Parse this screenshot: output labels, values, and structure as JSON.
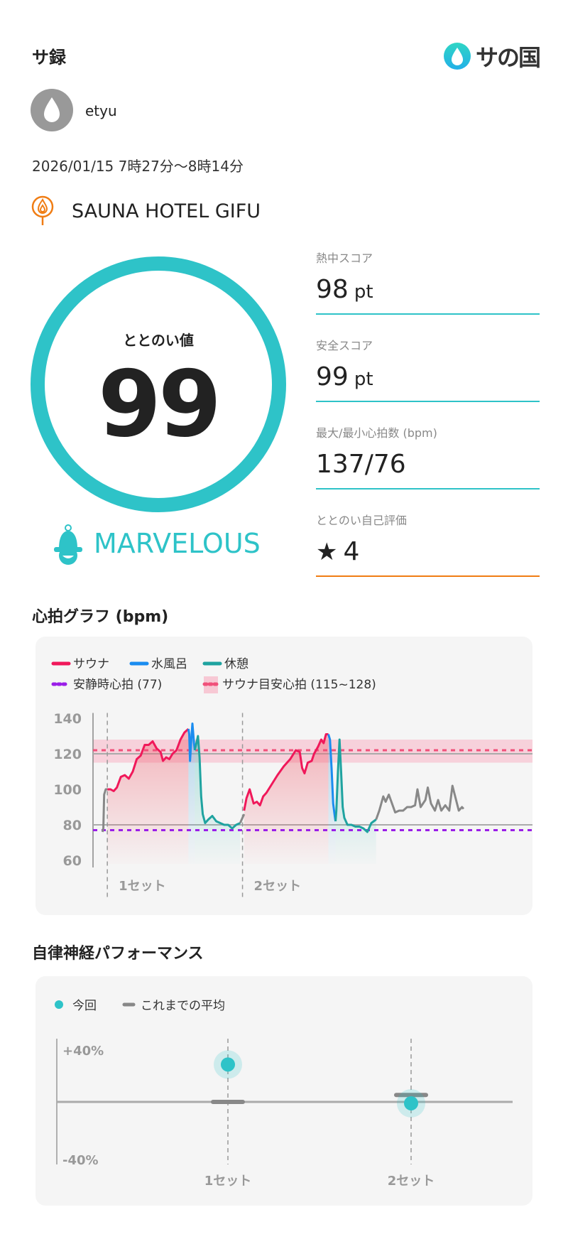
{
  "header": {
    "title": "サ録",
    "logo_text": "サの国"
  },
  "user": {
    "name": "etyu"
  },
  "session": {
    "datetime": "2026/01/15 7時27分〜8時14分"
  },
  "venue": {
    "name": "SAUNA HOTEL GIFU"
  },
  "totonoi": {
    "label": "ととのい値",
    "value": "99",
    "rank": "MARVELOUS",
    "ring_fraction": 1.0
  },
  "stats": [
    {
      "label": "熱中スコア",
      "value": "98",
      "unit": "pt"
    },
    {
      "label": "安全スコア",
      "value": "99",
      "unit": "pt"
    },
    {
      "label": "最大/最小心拍数 (bpm)",
      "value": "137/76",
      "unit": ""
    },
    {
      "label": "ととのい自己評価",
      "value": "4",
      "unit": "",
      "icon": "star-icon"
    }
  ],
  "colors": {
    "accent": "#2ec3c8",
    "sauna": "#f0185a",
    "water": "#1a8cf0",
    "rest": "#1fa3a0",
    "other": "#888888",
    "resting": "#9a1ee8",
    "target": "#f0507a",
    "orange": "#f07d14"
  },
  "heart_section": {
    "title": "心拍グラフ (bpm)"
  },
  "autonomic_section": {
    "title": "自律神経パフォーマンス"
  },
  "chart_data": [
    {
      "type": "line",
      "ylim": [
        60,
        140
      ],
      "yticks": [
        "140",
        "120",
        "100",
        "80",
        "60"
      ],
      "ytick_values": [
        140,
        120,
        100,
        80,
        60
      ],
      "grid_lines": [
        120,
        80
      ],
      "legend": {
        "sauna": "サウナ",
        "water": "水風呂",
        "rest": "休憩",
        "resting_hr": "安静時心拍 (77)",
        "target": "サウナ目安心拍 (115~128)"
      },
      "resting_hr": 77,
      "target_band": [
        115,
        128
      ],
      "target_line": 122,
      "set_labels": [
        "1セット",
        "2セット"
      ],
      "set_starts": [
        18,
        188
      ],
      "series": [
        {
          "name": "サウナ",
          "kind": "sauna",
          "points": [
            [
              18,
              100
            ],
            [
              22,
              100
            ],
            [
              26,
              99
            ],
            [
              30,
              101
            ],
            [
              35,
              107
            ],
            [
              40,
              108
            ],
            [
              45,
              106
            ],
            [
              50,
              110
            ],
            [
              55,
              117
            ],
            [
              60,
              119
            ],
            [
              65,
              125
            ],
            [
              70,
              125
            ],
            [
              75,
              127
            ],
            [
              80,
              123
            ],
            [
              85,
              121
            ],
            [
              88,
              116
            ],
            [
              92,
              118
            ],
            [
              96,
              117
            ],
            [
              100,
              120
            ],
            [
              105,
              122
            ],
            [
              110,
              128
            ],
            [
              115,
              132
            ],
            [
              120,
              134
            ]
          ]
        },
        {
          "name": "水風呂",
          "kind": "water",
          "points": [
            [
              120,
              134
            ],
            [
              121,
              131
            ],
            [
              122,
              116
            ],
            [
              124,
              131
            ],
            [
              125,
              137
            ],
            [
              127,
              126
            ],
            [
              128,
              122
            ]
          ]
        },
        {
          "name": "休憩",
          "kind": "rest",
          "points": [
            [
              128,
              122
            ],
            [
              130,
              126
            ],
            [
              132,
              130
            ],
            [
              134,
              118
            ],
            [
              136,
              96
            ],
            [
              138,
              86
            ],
            [
              141,
              81
            ],
            [
              145,
              83
            ],
            [
              150,
              85
            ],
            [
              155,
              82
            ],
            [
              160,
              81
            ],
            [
              165,
              80
            ],
            [
              170,
              80
            ],
            [
              175,
              78
            ],
            [
              180,
              80
            ],
            [
              185,
              81
            ]
          ]
        },
        {
          "name": "",
          "kind": "other",
          "points": [
            [
              12,
              76
            ],
            [
              13,
              78
            ],
            [
              14,
              97
            ],
            [
              16,
              100
            ],
            [
              18,
              100
            ]
          ]
        },
        {
          "name": "",
          "kind": "other",
          "points": [
            [
              185,
              81
            ],
            [
              188,
              84
            ],
            [
              190,
              86
            ]
          ]
        },
        {
          "name": "サウナ",
          "kind": "sauna",
          "points": [
            [
              190,
              88
            ],
            [
              193,
              95
            ],
            [
              197,
              100
            ],
            [
              202,
              92
            ],
            [
              206,
              93
            ],
            [
              210,
              91
            ],
            [
              214,
              96
            ],
            [
              218,
              98
            ],
            [
              225,
              103
            ],
            [
              232,
              108
            ],
            [
              240,
              113
            ],
            [
              248,
              117
            ],
            [
              255,
              122
            ],
            [
              260,
              121
            ],
            [
              263,
              112
            ],
            [
              266,
              109
            ],
            [
              270,
              115
            ],
            [
              275,
              116
            ],
            [
              278,
              120
            ],
            [
              283,
              124
            ],
            [
              287,
              128
            ],
            [
              290,
              126
            ],
            [
              293,
              131
            ],
            [
              296,
              131
            ]
          ]
        },
        {
          "name": "水風呂",
          "kind": "water",
          "points": [
            [
              296,
              131
            ],
            [
              298,
              128
            ],
            [
              300,
              112
            ],
            [
              302,
              92
            ],
            [
              304,
              85
            ],
            [
              305,
              82
            ]
          ]
        },
        {
          "name": "休憩",
          "kind": "rest",
          "points": [
            [
              305,
              82
            ],
            [
              306,
              88
            ],
            [
              308,
              110
            ],
            [
              310,
              128
            ],
            [
              312,
              110
            ],
            [
              314,
              90
            ],
            [
              316,
              84
            ],
            [
              320,
              80
            ],
            [
              325,
              80
            ],
            [
              330,
              79
            ],
            [
              335,
              79
            ],
            [
              340,
              78
            ],
            [
              345,
              76
            ],
            [
              350,
              81
            ],
            [
              356,
              83
            ]
          ]
        },
        {
          "name": "",
          "kind": "other",
          "points": [
            [
              356,
              83
            ],
            [
              360,
              88
            ],
            [
              365,
              96
            ],
            [
              368,
              93
            ],
            [
              372,
              97
            ],
            [
              376,
              92
            ],
            [
              380,
              87
            ],
            [
              385,
              88
            ],
            [
              390,
              88
            ],
            [
              395,
              90
            ],
            [
              400,
              90
            ],
            [
              405,
              91
            ],
            [
              408,
              100
            ],
            [
              412,
              90
            ],
            [
              418,
              94
            ],
            [
              421,
              101
            ],
            [
              425,
              92
            ],
            [
              430,
              88
            ],
            [
              434,
              94
            ],
            [
              438,
              88
            ],
            [
              443,
              91
            ],
            [
              448,
              88
            ],
            [
              452,
              102
            ],
            [
              456,
              95
            ],
            [
              460,
              88
            ],
            [
              464,
              90
            ],
            [
              466,
              89
            ]
          ]
        }
      ]
    },
    {
      "type": "scatter",
      "ylim": [
        -40,
        40
      ],
      "yticks": [
        "+40%",
        "-40%"
      ],
      "legend": {
        "current": "今回",
        "average": "これまでの平均"
      },
      "categories": [
        "1セット",
        "2セット"
      ],
      "current": [
        27,
        -1
      ],
      "average": [
        0,
        5
      ]
    }
  ]
}
